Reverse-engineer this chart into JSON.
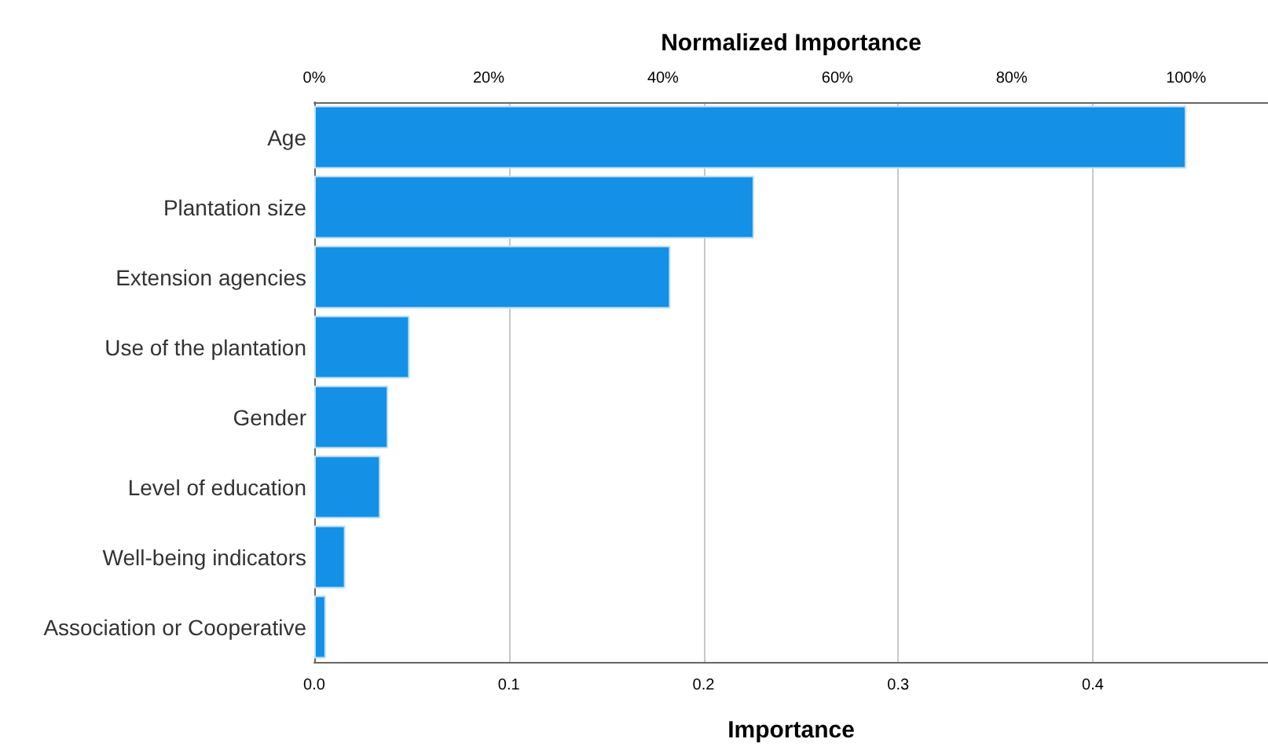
{
  "chart_data": {
    "type": "bar",
    "orientation": "horizontal",
    "categories": [
      "Age",
      "Plantation size",
      "Extension agencies",
      "Use of the plantation",
      "Gender",
      "Level of education",
      "Well-being indicators",
      "Association or Cooperative"
    ],
    "values": [
      0.448,
      0.226,
      0.183,
      0.049,
      0.038,
      0.034,
      0.016,
      0.006
    ],
    "color": "#1490e6",
    "xlabel": "Importance",
    "xlim": [
      0,
      0.49
    ],
    "xticks": [
      {
        "value": 0,
        "label": "0.0"
      },
      0.1,
      0.2,
      0.3,
      0.4
    ],
    "x2label": "Normalized Importance",
    "x2lim": [
      0,
      109.4
    ],
    "x2ticks": [
      {
        "value": 0,
        "label": "0%"
      },
      {
        "value": 20,
        "label": "20%"
      },
      {
        "value": 40,
        "label": "40%"
      },
      {
        "value": 60,
        "label": "60%"
      },
      {
        "value": 80,
        "label": "80%"
      },
      {
        "value": 100,
        "label": "100%"
      }
    ],
    "grid": "x"
  }
}
